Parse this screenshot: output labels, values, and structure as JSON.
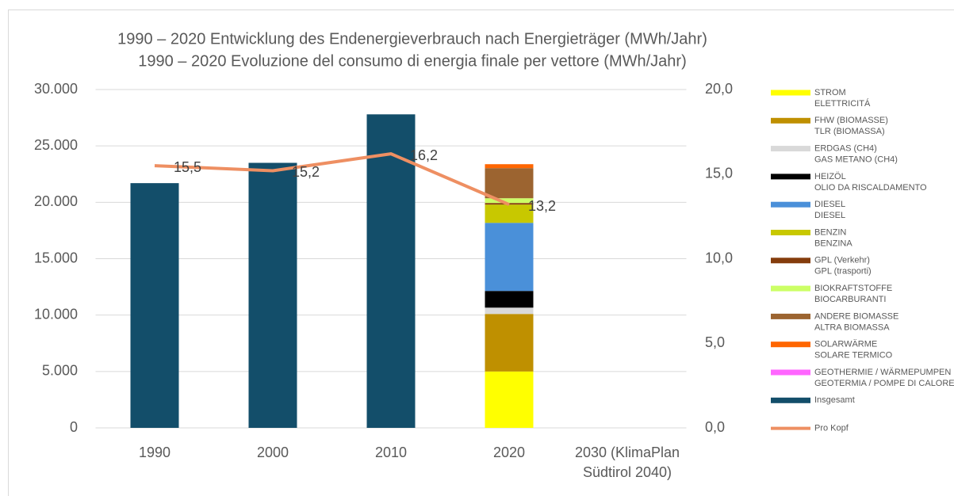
{
  "chart_data": {
    "type": "bar",
    "stacked": true,
    "title": "1990 – 2020 Entwicklung des Endenergieverbrauch nach Energieträger (MWh/Jahr)",
    "subtitle": "1990 – 2020 Evoluzione del consumo di energia finale per vettore (MWh/Jahr)",
    "categories": [
      "1990",
      "2000",
      "2010",
      "2020",
      "2030 (KlimaPlan Südtirol 2040)"
    ],
    "ylim": [
      0,
      30000
    ],
    "yticks": [
      0,
      {
        "value": 5000,
        "label": "5.000"
      },
      {
        "value": 10000,
        "label": "10.000"
      },
      {
        "value": 15000,
        "label": "15.000"
      },
      {
        "value": 20000,
        "label": "20.000"
      },
      {
        "value": 25000,
        "label": "25.000"
      },
      {
        "value": 30000,
        "label": "30.000"
      }
    ],
    "y2lim": [
      0,
      20
    ],
    "y2ticks": [
      {
        "value": 0,
        "label": "0,0"
      },
      {
        "value": 5,
        "label": "5,0"
      },
      {
        "value": 10,
        "label": "10,0"
      },
      {
        "value": 15,
        "label": "15,0"
      },
      {
        "value": 20,
        "label": "20,0"
      }
    ],
    "grid": true,
    "legend": "right",
    "series": [
      {
        "name": "STROM",
        "subname": "ELETTRICITÁ",
        "color": "#ffff00",
        "values": [
          null,
          null,
          null,
          5000,
          null
        ]
      },
      {
        "name": "FHW (BIOMASSE)",
        "subname": "TLR (BIOMASSA)",
        "color": "#bf9000",
        "values": [
          null,
          null,
          null,
          5100,
          null
        ]
      },
      {
        "name": "ERDGAS (CH4)",
        "subname": "GAS METANO (CH4)",
        "color": "#d9d9d9",
        "values": [
          null,
          null,
          null,
          560,
          null
        ]
      },
      {
        "name": "HEIZÖL",
        "subname": "OLIO DA RISCALDAMENTO",
        "color": "#000000",
        "values": [
          null,
          null,
          null,
          1480,
          null
        ]
      },
      {
        "name": "DIESEL",
        "subname": "DIESEL",
        "color": "#4a90d9",
        "values": [
          null,
          null,
          null,
          6040,
          null
        ]
      },
      {
        "name": "BENZIN",
        "subname": "BENZINA",
        "color": "#c8c800",
        "values": [
          null,
          null,
          null,
          1620,
          null
        ]
      },
      {
        "name": "GPL (Verkehr)",
        "subname": "GPL (trasporti)",
        "color": "#843c0c",
        "values": [
          null,
          null,
          null,
          140,
          null
        ]
      },
      {
        "name": "BIOKRAFTSTOFFE",
        "subname": " BIOCARBURANTI",
        "color": "#ccff66",
        "values": [
          null,
          null,
          null,
          420,
          null
        ]
      },
      {
        "name": "ANDERE BIOMASSE",
        "subname": "ALTRA BIOMASSA",
        "color": "#9c6430",
        "values": [
          null,
          null,
          null,
          2670,
          null
        ]
      },
      {
        "name": "SOLARWÄRME",
        "subname": "SOLARE TERMICO",
        "color": "#ff6600",
        "values": [
          null,
          null,
          null,
          350,
          null
        ]
      },
      {
        "name": "GEOTHERMIE / WÄRMEPUMPEN",
        "subname": "GEOTERMIA /  POMPE DI CALORE",
        "color": "#ff66ff",
        "values": [
          null,
          null,
          null,
          0,
          null
        ]
      },
      {
        "name": "Insgesamt",
        "color": "#134e6a",
        "values": [
          21700,
          23500,
          27800,
          null,
          null
        ]
      },
      {
        "name": "Pro Kopf",
        "color": "#ee8f62",
        "type": "line",
        "axis": "y2",
        "values": [
          15.5,
          15.2,
          16.2,
          13.2,
          null
        ],
        "value_labels": [
          "15,5",
          "15,2",
          "16,2",
          "13,2",
          null
        ]
      }
    ]
  }
}
